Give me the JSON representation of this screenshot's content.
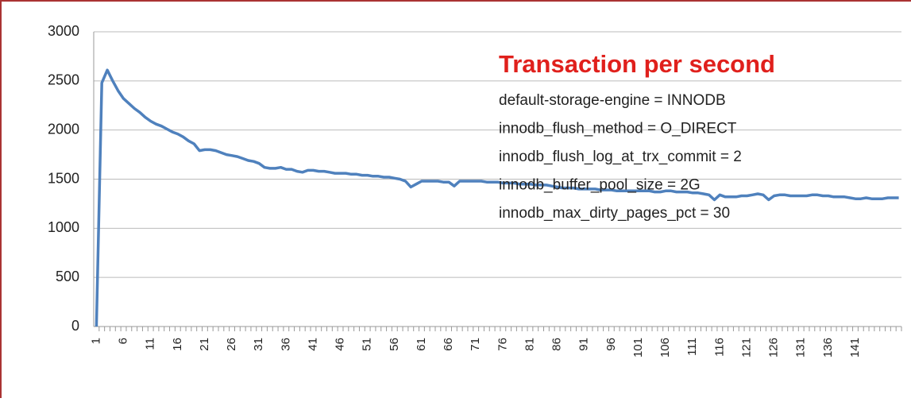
{
  "chart_data": {
    "type": "line",
    "title": "Transaction per second",
    "annotations": [
      "default-storage-engine = INNODB",
      "innodb_flush_method = O_DIRECT",
      "innodb_flush_log_at_trx_commit = 2",
      "innodb_buffer_pool_size = 2G",
      "innodb_max_dirty_pages_pct = 30"
    ],
    "categories": [
      1,
      null,
      null,
      null,
      null,
      6,
      null,
      null,
      null,
      null,
      11,
      null,
      null,
      null,
      null,
      16,
      null,
      null,
      null,
      null,
      21,
      null,
      null,
      null,
      null,
      26,
      null,
      null,
      null,
      null,
      31,
      null,
      null,
      null,
      null,
      36,
      null,
      null,
      null,
      null,
      41,
      null,
      null,
      null,
      null,
      46,
      null,
      null,
      null,
      null,
      51,
      null,
      null,
      null,
      null,
      56,
      null,
      null,
      null,
      null,
      61,
      null,
      null,
      null,
      null,
      66,
      null,
      null,
      null,
      null,
      71,
      null,
      null,
      null,
      null,
      76,
      null,
      null,
      null,
      null,
      81,
      null,
      null,
      null,
      null,
      86,
      null,
      null,
      null,
      null,
      91,
      null,
      null,
      null,
      null,
      96,
      null,
      null,
      null,
      null,
      101,
      null,
      null,
      null,
      null,
      106,
      null,
      null,
      null,
      null,
      111,
      null,
      null,
      null,
      null,
      116,
      null,
      null,
      null,
      null,
      121,
      null,
      null,
      null,
      null,
      126,
      null,
      null,
      null,
      null,
      131,
      null,
      null,
      null,
      null,
      136,
      null,
      null,
      null,
      null,
      141,
      null,
      null,
      null,
      null,
      null,
      null,
      null,
      null
    ],
    "values": [
      0,
      2480,
      2610,
      2500,
      2400,
      2320,
      2270,
      2220,
      2180,
      2130,
      2090,
      2060,
      2040,
      2010,
      1980,
      1960,
      1930,
      1890,
      1860,
      1790,
      1800,
      1800,
      1790,
      1770,
      1750,
      1740,
      1730,
      1710,
      1690,
      1680,
      1660,
      1620,
      1610,
      1610,
      1620,
      1600,
      1600,
      1580,
      1570,
      1590,
      1590,
      1580,
      1580,
      1570,
      1560,
      1560,
      1560,
      1550,
      1550,
      1540,
      1540,
      1530,
      1530,
      1520,
      1520,
      1510,
      1500,
      1480,
      1420,
      1450,
      1480,
      1480,
      1480,
      1480,
      1470,
      1470,
      1430,
      1480,
      1480,
      1480,
      1480,
      1480,
      1470,
      1470,
      1470,
      1460,
      1460,
      1460,
      1450,
      1450,
      1450,
      1440,
      1440,
      1440,
      1430,
      1420,
      1410,
      1410,
      1410,
      1400,
      1400,
      1400,
      1400,
      1390,
      1390,
      1390,
      1380,
      1380,
      1380,
      1380,
      1380,
      1380,
      1380,
      1370,
      1370,
      1380,
      1380,
      1370,
      1370,
      1370,
      1360,
      1360,
      1350,
      1340,
      1290,
      1340,
      1320,
      1320,
      1320,
      1330,
      1330,
      1340,
      1350,
      1340,
      1290,
      1330,
      1340,
      1340,
      1330,
      1330,
      1330,
      1330,
      1340,
      1340,
      1330,
      1330,
      1320,
      1320,
      1320,
      1310,
      1300,
      1300,
      1310,
      1300,
      1300,
      1300,
      1310,
      1310,
      1310
    ],
    "color": "#4f81bd",
    "ylim": [
      0,
      3000
    ],
    "yticks": [
      0,
      500,
      1000,
      1500,
      2000,
      2500,
      3000
    ],
    "grid": true
  }
}
